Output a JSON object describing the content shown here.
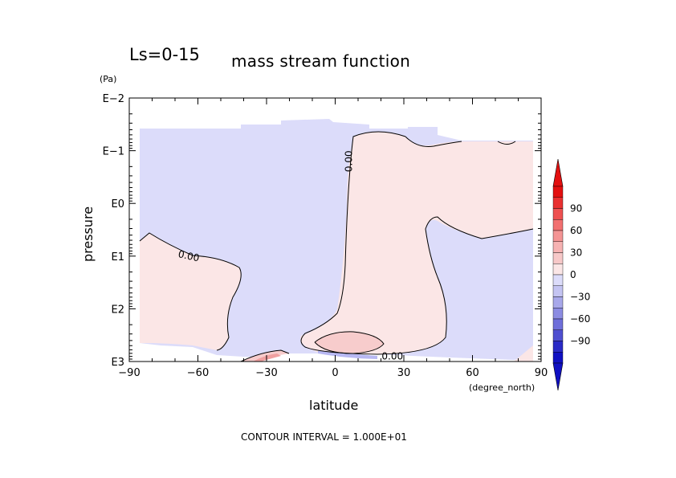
{
  "title": {
    "main": "Ls=0-15",
    "sub": "mass stream function"
  },
  "axes": {
    "y_unit": "(Pa)",
    "x_unit": "(degree_north)",
    "xlabel": "latitude",
    "ylabel": "pressure"
  },
  "footer": "CONTOUR INTERVAL = 1.000E+01",
  "colors": {
    "negative_fill": "#dcdcfa",
    "positive_fill": "#fbe6e6",
    "positive_core": "#f7cccc",
    "strong_positive": "#f0a0a0",
    "negative_core": "#b8b8f2",
    "contour_line": "#000000"
  },
  "chart_data": {
    "type": "contour",
    "x_ticks": [
      -90,
      -60,
      -30,
      0,
      30,
      60,
      90
    ],
    "x_tick_labels": [
      "−90",
      "−60",
      "−30",
      "0",
      "30",
      "60",
      "90"
    ],
    "xlim": [
      -90,
      90
    ],
    "y_scale": "log",
    "y_ticks": [
      "E−2",
      "E−1",
      "E0",
      "E1",
      "E2",
      "E3"
    ],
    "ylim_log10": [
      -2,
      3
    ],
    "contour_labels": [
      {
        "text": "0.00",
        "lat": 6,
        "log10p": -0.8,
        "rotate": -90
      },
      {
        "text": "0.00",
        "lat": -64,
        "log10p": 1.0,
        "rotate": 12
      },
      {
        "text": "0.00",
        "lat": 25,
        "log10p": 2.9,
        "rotate": 0
      }
    ],
    "regions": [
      {
        "sign": "negative",
        "description": "southern hemisphere and upper atmosphere"
      },
      {
        "sign": "positive",
        "description": "tropical/northern cell"
      },
      {
        "sign": "positive",
        "description": "southern mid-latitude cell"
      },
      {
        "sign": "negative",
        "description": "northern mid-latitude region"
      }
    ],
    "colorbar": {
      "ticks": [
        90,
        60,
        30,
        0,
        -30,
        -60,
        -90
      ],
      "tick_labels": [
        "90",
        "60",
        "30",
        "0",
        "−30",
        "−60",
        "−90"
      ],
      "colors_top_to_bottom": [
        "#e31010",
        "#e93030",
        "#ee5050",
        "#f27070",
        "#f49494",
        "#f6b2b2",
        "#f7c8c8",
        "#fbe6e6",
        "#dcdcfa",
        "#c4c4f2",
        "#a8a8ea",
        "#8c8ce2",
        "#6f6fda",
        "#4f4fd0",
        "#2a2ac6",
        "#1010c2"
      ]
    }
  }
}
